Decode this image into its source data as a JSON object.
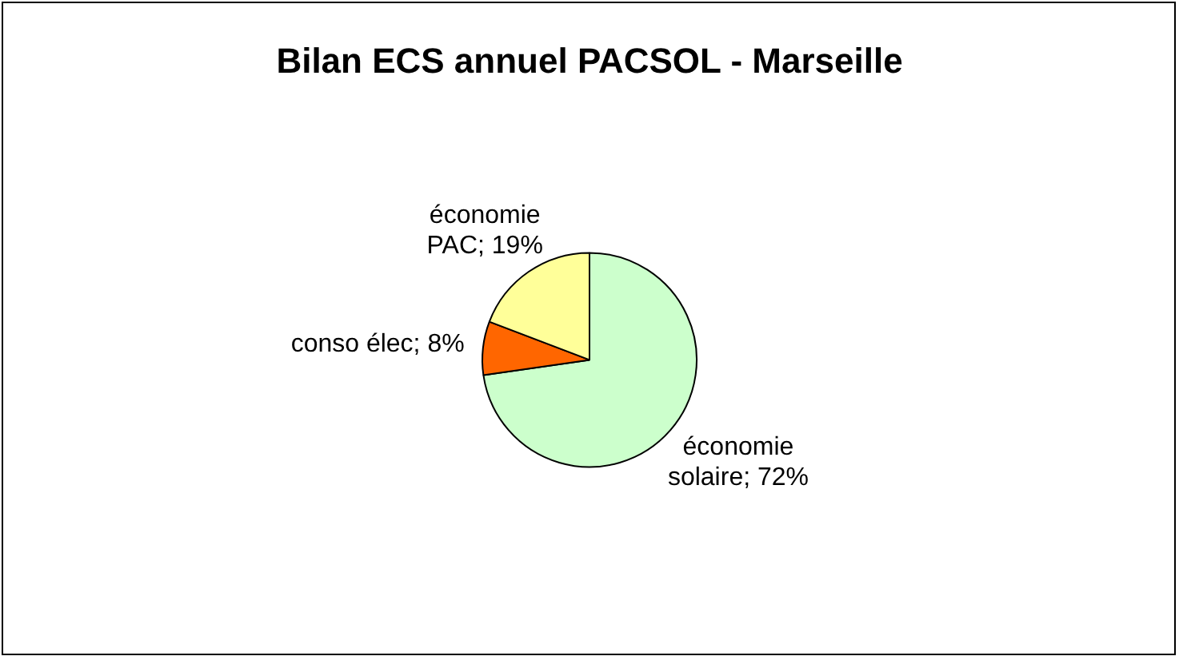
{
  "chart_data": {
    "type": "pie",
    "title": "Bilan ECS annuel PACSOL - Marseille",
    "categories": [
      "économie solaire",
      "conso élec",
      "économie PAC"
    ],
    "values": [
      72,
      8,
      19
    ],
    "colors": [
      "#ccffcc",
      "#ff6600",
      "#ffff99"
    ],
    "value_labels": [
      "72%",
      "8%",
      "19%"
    ],
    "legend": false
  }
}
